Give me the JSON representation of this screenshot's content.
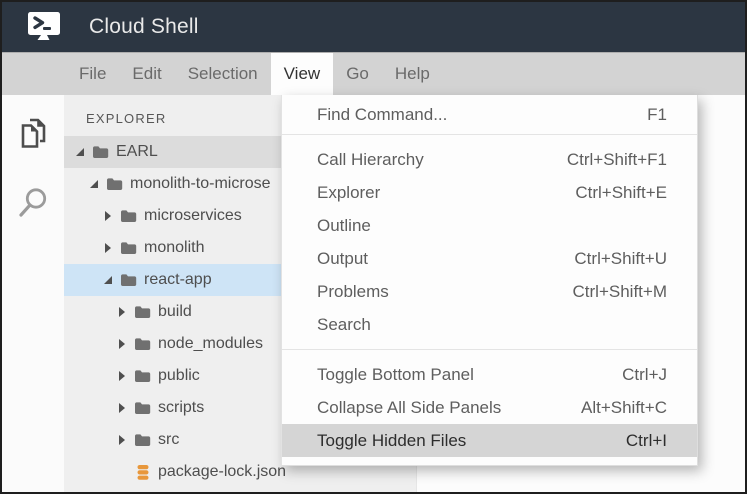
{
  "window": {
    "title": "Cloud Shell"
  },
  "colors": {
    "titlebar_bg": "#2c3642",
    "menubar_bg": "#d3d3d3",
    "dropdown_highlight": "#d5d5d5",
    "tree_selected_gray": "#dcdcdc",
    "tree_selected_blue": "#cee4f6",
    "json_icon_orange": "#e8973b"
  },
  "menu_bar": {
    "active": "View",
    "items": [
      {
        "label": "File"
      },
      {
        "label": "Edit"
      },
      {
        "label": "Selection"
      },
      {
        "label": "View"
      },
      {
        "label": "Go"
      },
      {
        "label": "Help"
      }
    ]
  },
  "view_menu": {
    "groups": [
      [
        {
          "label": "Find Command...",
          "shortcut": "F1"
        }
      ],
      [
        {
          "label": "Call Hierarchy",
          "shortcut": "Ctrl+Shift+F1"
        },
        {
          "label": "Explorer",
          "shortcut": "Ctrl+Shift+E"
        },
        {
          "label": "Outline",
          "shortcut": ""
        },
        {
          "label": "Output",
          "shortcut": "Ctrl+Shift+U"
        },
        {
          "label": "Problems",
          "shortcut": "Ctrl+Shift+M"
        },
        {
          "label": "Search",
          "shortcut": ""
        }
      ],
      [
        {
          "label": "Toggle Bottom Panel",
          "shortcut": "Ctrl+J"
        },
        {
          "label": "Collapse All Side Panels",
          "shortcut": "Alt+Shift+C"
        },
        {
          "label": "Toggle Hidden Files",
          "shortcut": "Ctrl+I",
          "highlighted": true
        }
      ]
    ]
  },
  "activity_bar": {
    "icons": [
      {
        "name": "files-icon"
      },
      {
        "name": "search-icon"
      }
    ]
  },
  "explorer": {
    "header": "EXPLORER",
    "tree": [
      {
        "label": "EARL",
        "level": 0,
        "state": "expanded",
        "icon": "folder",
        "selected": "gray"
      },
      {
        "label": "monolith-to-microse",
        "level": 1,
        "state": "expanded",
        "icon": "folder",
        "selected": ""
      },
      {
        "label": "microservices",
        "level": 2,
        "state": "collapsed",
        "icon": "folder",
        "selected": ""
      },
      {
        "label": "monolith",
        "level": 2,
        "state": "collapsed",
        "icon": "folder",
        "selected": ""
      },
      {
        "label": "react-app",
        "level": 2,
        "state": "expanded",
        "icon": "folder",
        "selected": "blue"
      },
      {
        "label": "build",
        "level": 3,
        "state": "collapsed",
        "icon": "folder",
        "selected": ""
      },
      {
        "label": "node_modules",
        "level": 3,
        "state": "collapsed",
        "icon": "folder",
        "selected": ""
      },
      {
        "label": "public",
        "level": 3,
        "state": "collapsed",
        "icon": "folder",
        "selected": ""
      },
      {
        "label": "scripts",
        "level": 3,
        "state": "collapsed",
        "icon": "folder",
        "selected": ""
      },
      {
        "label": "src",
        "level": 3,
        "state": "collapsed",
        "icon": "folder",
        "selected": ""
      },
      {
        "label": "package-lock.json",
        "level": 3,
        "state": "file",
        "icon": "json-db",
        "selected": ""
      }
    ]
  }
}
